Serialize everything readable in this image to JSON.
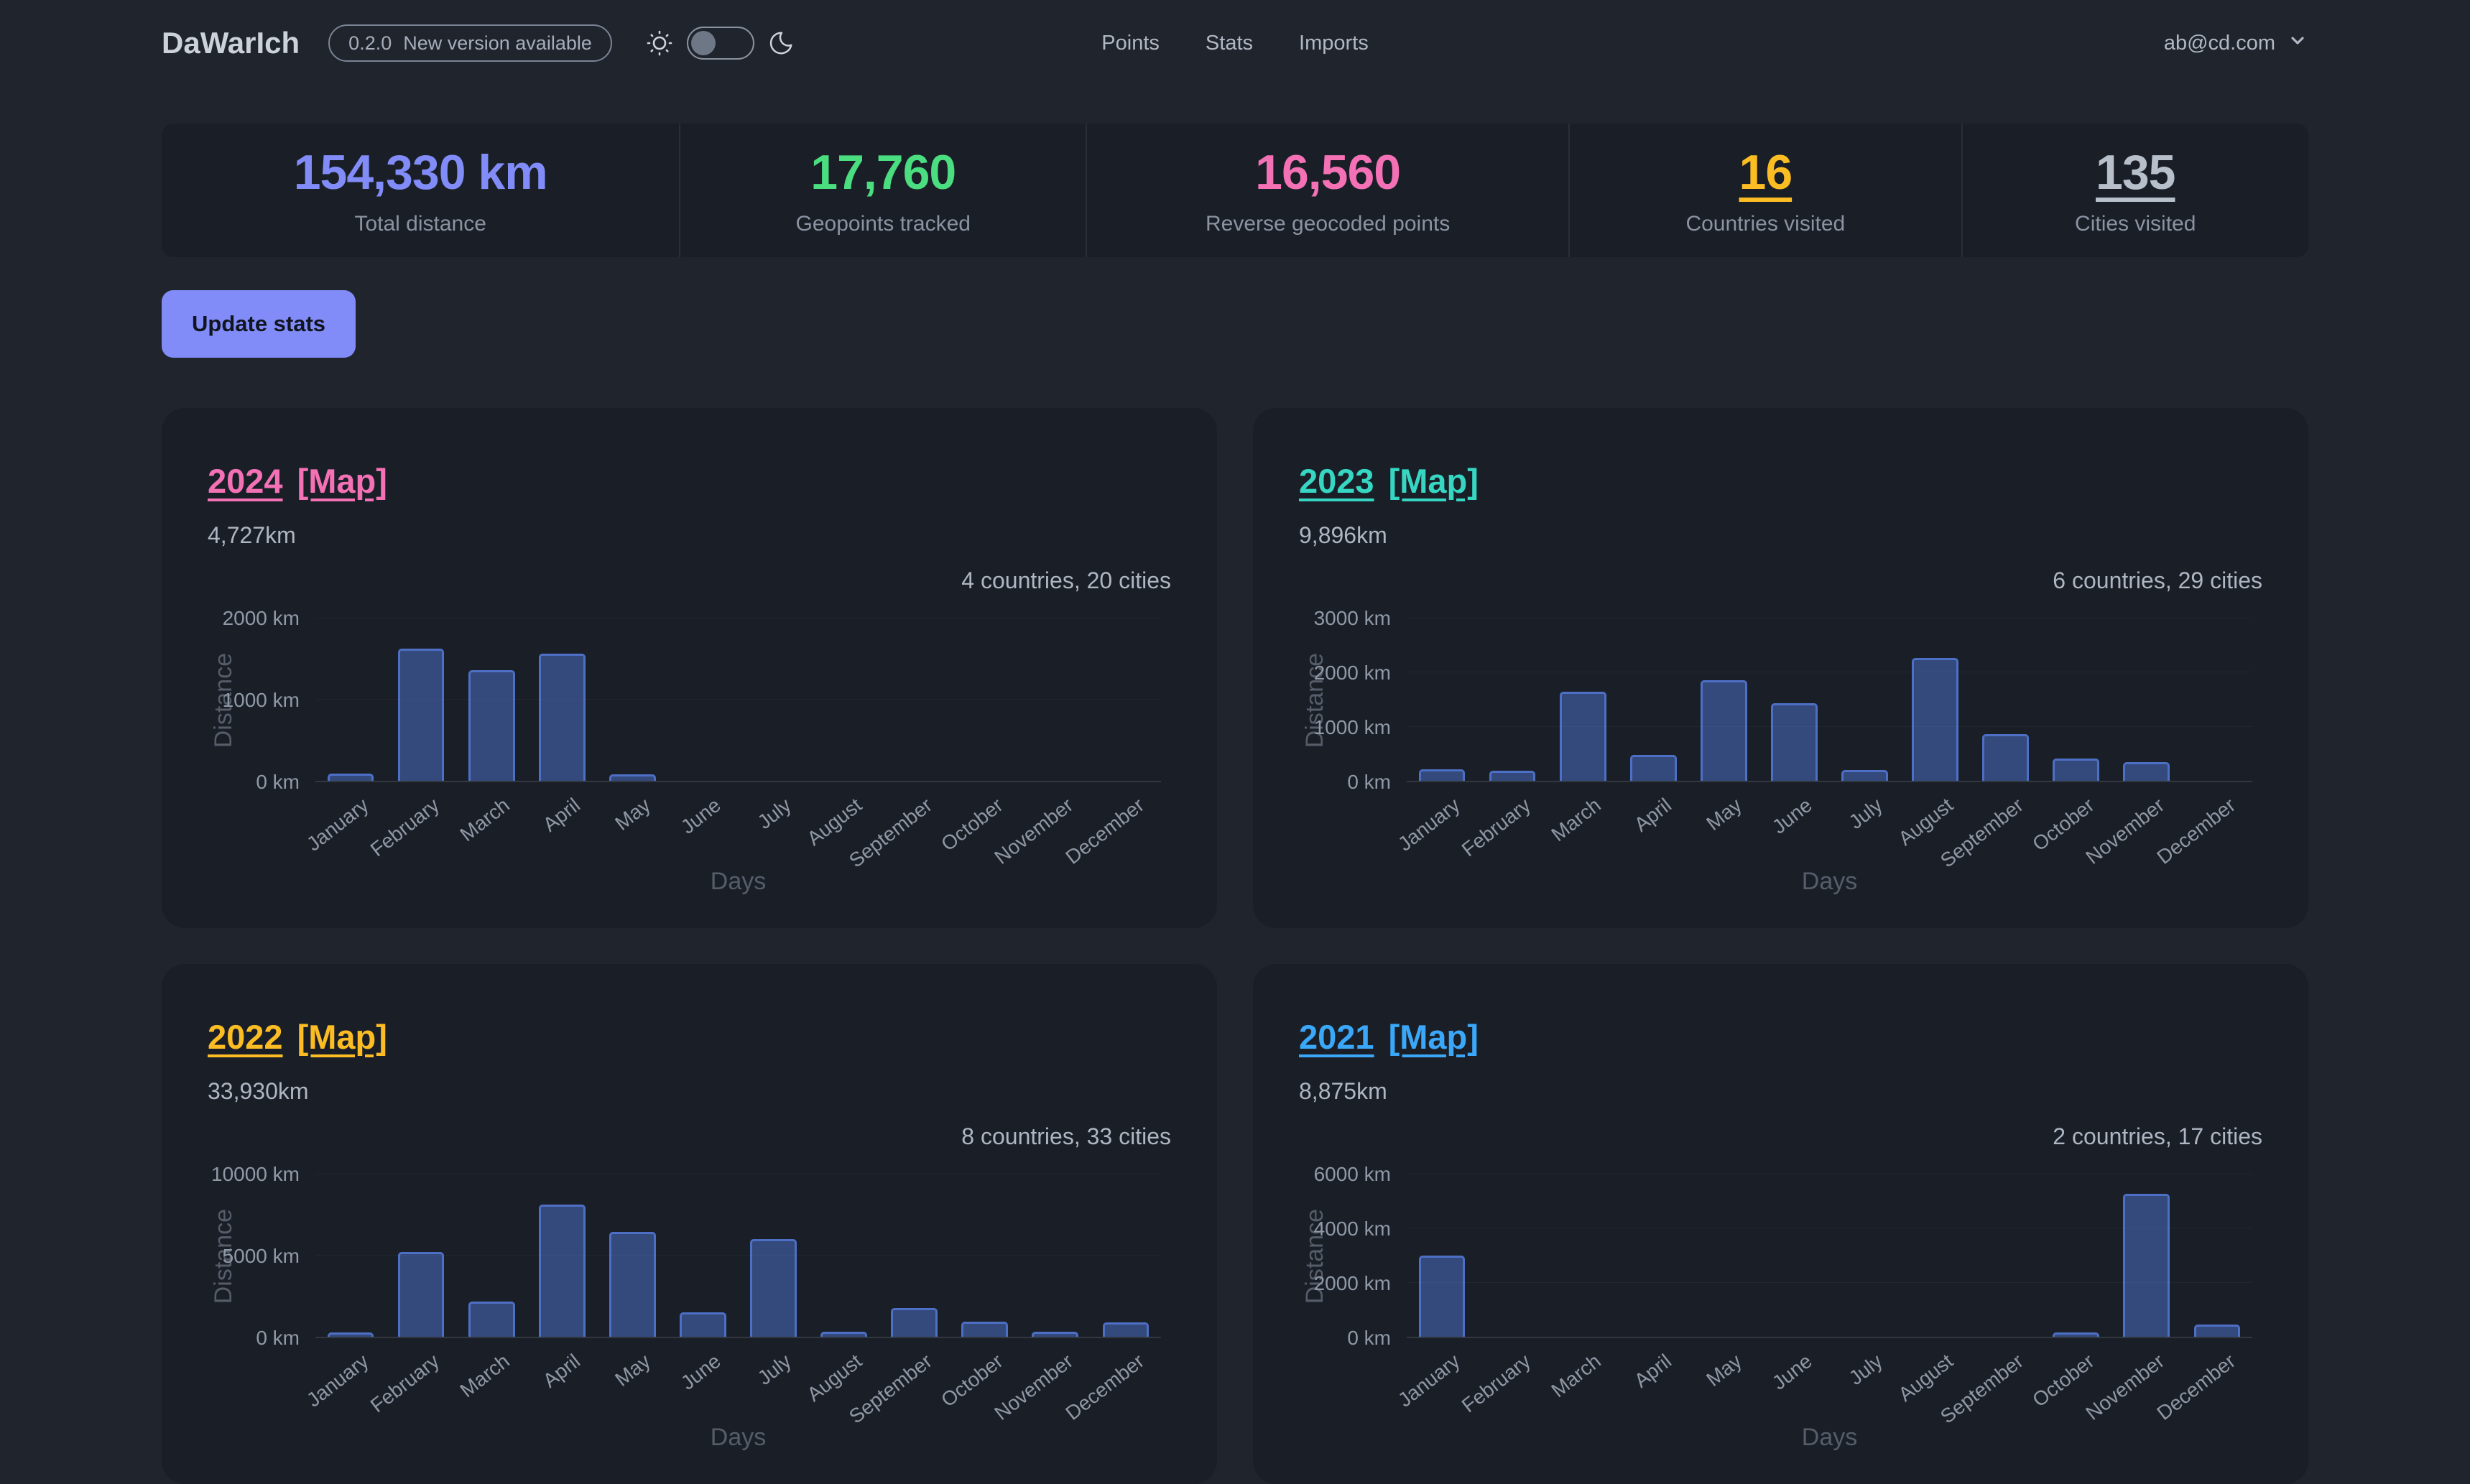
{
  "app": {
    "name": "DaWarIch"
  },
  "header": {
    "version": "0.2.0",
    "version_message": "New version available",
    "nav": [
      {
        "label": "Points"
      },
      {
        "label": "Stats"
      },
      {
        "label": "Imports"
      }
    ],
    "user_email": "ab@cd.com"
  },
  "stats_overview": {
    "items": [
      {
        "value": "154,330 km",
        "label": "Total distance",
        "color": "#818cf8",
        "decoration": "none"
      },
      {
        "value": "17,760",
        "label": "Geopoints tracked",
        "color": "#4ade80",
        "decoration": "none"
      },
      {
        "value": "16,560",
        "label": "Reverse geocoded points",
        "color": "#f471b5",
        "decoration": "none"
      },
      {
        "value": "16",
        "label": "Countries visited",
        "color": "#fbbd23",
        "decoration": "underline"
      },
      {
        "value": "135",
        "label": "Cities visited",
        "color": "#b7bfca",
        "decoration": "underline"
      }
    ]
  },
  "update_stats_button": "Update stats",
  "theme": {
    "page_bg": "#1f242d",
    "panel_bg": "#1a1f27",
    "bar_fill": "#344a7d",
    "bar_border": "#4d6fc5",
    "button_bg": "#818cf8"
  },
  "cards": [
    {
      "year": "2024",
      "map_label": "[Map]",
      "accent": "#f471b5",
      "distance": "4,727km",
      "summary": "4 countries, 20 cities",
      "chart_data": {
        "type": "bar",
        "title": "",
        "xlabel": "Days",
        "ylabel": "Distance",
        "x": [
          "January",
          "February",
          "March",
          "April",
          "May",
          "June",
          "July",
          "August",
          "September",
          "October",
          "November",
          "December"
        ],
        "values": [
          90,
          1630,
          1360,
          1570,
          77,
          0,
          0,
          0,
          0,
          0,
          0,
          0
        ],
        "ymax": 2000,
        "yticks": [
          "0 km",
          "1000 km",
          "2000 km"
        ],
        "grid": false,
        "legend": "none"
      }
    },
    {
      "year": "2023",
      "map_label": "[Map]",
      "accent": "#36d6c3",
      "distance": "9,896km",
      "summary": "6 countries, 29 cities",
      "chart_data": {
        "type": "bar",
        "title": "",
        "xlabel": "Days",
        "ylabel": "Distance",
        "x": [
          "January",
          "February",
          "March",
          "April",
          "May",
          "June",
          "July",
          "August",
          "September",
          "October",
          "November",
          "December"
        ],
        "values": [
          210,
          180,
          1650,
          480,
          1860,
          1430,
          200,
          2266,
          860,
          410,
          350,
          0
        ],
        "ymax": 3000,
        "yticks": [
          "0 km",
          "1000 km",
          "2000 km",
          "3000 km"
        ],
        "grid": false,
        "legend": "none"
      }
    },
    {
      "year": "2022",
      "map_label": "[Map]",
      "accent": "#fbbd23",
      "distance": "33,930km",
      "summary": "8 countries, 33 cities",
      "chart_data": {
        "type": "bar",
        "title": "",
        "xlabel": "Days",
        "ylabel": "Distance",
        "x": [
          "January",
          "February",
          "March",
          "April",
          "May",
          "June",
          "July",
          "August",
          "September",
          "October",
          "November",
          "December"
        ],
        "values": [
          250,
          5200,
          2150,
          8150,
          6450,
          1500,
          6000,
          300,
          1750,
          950,
          330,
          900
        ],
        "ymax": 10000,
        "yticks": [
          "0 km",
          "5000 km",
          "10000 km"
        ],
        "grid": false,
        "legend": "none"
      }
    },
    {
      "year": "2021",
      "map_label": "[Map]",
      "accent": "#3ba7f8",
      "distance": "8,875km",
      "summary": "2 countries, 17 cities",
      "chart_data": {
        "type": "bar",
        "title": "",
        "xlabel": "Days",
        "ylabel": "Distance",
        "x": [
          "January",
          "February",
          "March",
          "April",
          "May",
          "June",
          "July",
          "August",
          "September",
          "October",
          "November",
          "December"
        ],
        "values": [
          3000,
          0,
          0,
          0,
          0,
          0,
          0,
          0,
          0,
          150,
          5280,
          445
        ],
        "ymax": 6000,
        "yticks": [
          "0 km",
          "2000 km",
          "4000 km",
          "6000 km"
        ],
        "grid": false,
        "legend": "none"
      }
    }
  ]
}
